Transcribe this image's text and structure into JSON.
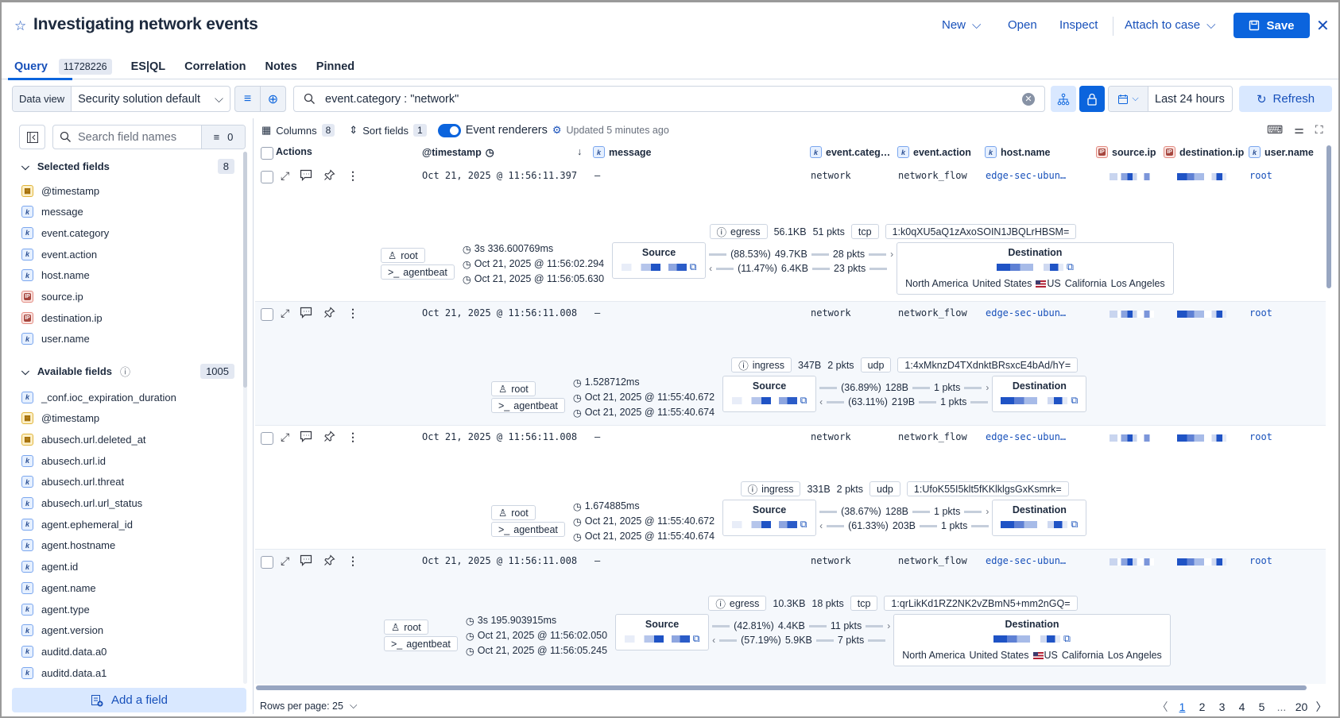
{
  "header": {
    "title": "Investigating network events",
    "actions": {
      "new": "New",
      "open": "Open",
      "inspect": "Inspect",
      "attach": "Attach to case",
      "save": "Save"
    }
  },
  "tabs": [
    {
      "label": "Query",
      "count": "11728226",
      "active": true
    },
    {
      "label": "ES|QL"
    },
    {
      "label": "Correlation"
    },
    {
      "label": "Notes"
    },
    {
      "label": "Pinned"
    }
  ],
  "query_bar": {
    "data_view_label": "Data view",
    "data_view_value": "Security solution default",
    "query": "event.category : \"network\"",
    "date_range": "Last 24 hours",
    "refresh": "Refresh"
  },
  "sidebar": {
    "search_placeholder": "Search field names",
    "filter_count": "0",
    "selected_label": "Selected fields",
    "selected_count": "8",
    "selected": [
      {
        "name": "@timestamp",
        "type": "date"
      },
      {
        "name": "message",
        "type": "k"
      },
      {
        "name": "event.category",
        "type": "k"
      },
      {
        "name": "event.action",
        "type": "k"
      },
      {
        "name": "host.name",
        "type": "k"
      },
      {
        "name": "source.ip",
        "type": "ip"
      },
      {
        "name": "destination.ip",
        "type": "ip"
      },
      {
        "name": "user.name",
        "type": "k"
      }
    ],
    "available_label": "Available fields",
    "available_count": "1005",
    "available": [
      {
        "name": "_conf.ioc_expiration_duration",
        "type": "k"
      },
      {
        "name": "@timestamp",
        "type": "date"
      },
      {
        "name": "abusech.url.deleted_at",
        "type": "date"
      },
      {
        "name": "abusech.url.id",
        "type": "k"
      },
      {
        "name": "abusech.url.threat",
        "type": "k"
      },
      {
        "name": "abusech.url.url_status",
        "type": "k"
      },
      {
        "name": "agent.ephemeral_id",
        "type": "k"
      },
      {
        "name": "agent.hostname",
        "type": "k"
      },
      {
        "name": "agent.id",
        "type": "k"
      },
      {
        "name": "agent.name",
        "type": "k"
      },
      {
        "name": "agent.type",
        "type": "k"
      },
      {
        "name": "agent.version",
        "type": "k"
      },
      {
        "name": "auditd.data.a0",
        "type": "k"
      },
      {
        "name": "auditd.data.a1",
        "type": "k"
      }
    ],
    "add_field": "Add a field"
  },
  "grid_toolbar": {
    "columns_label": "Columns",
    "columns_count": "8",
    "sort_label": "Sort fields",
    "sort_count": "1",
    "renderers_label": "Event renderers",
    "renderers_on": true,
    "updated": "Updated 5 minutes ago"
  },
  "table": {
    "headers": {
      "actions": "Actions",
      "timestamp": "@timestamp",
      "message": "message",
      "category": "event.categ…",
      "action": "event.action",
      "host": "host.name",
      "source_ip": "source.ip",
      "destination_ip": "destination.ip",
      "user": "user.name"
    },
    "rows": [
      {
        "timestamp": "Oct 21, 2025 @ 11:56:11.397",
        "message": "–",
        "category": "network",
        "action": "network_flow",
        "host": "edge-sec-ubun…",
        "user": "root",
        "detail": {
          "user": "root",
          "process": "agentbeat",
          "duration": "3s 336.600769ms",
          "start": "Oct 21, 2025 @ 11:56:02.294",
          "end": "Oct 21, 2025 @ 11:56:05.630",
          "direction": "egress",
          "bytes": "56.1KB",
          "packets": "51 pkts",
          "transport": "tcp",
          "community_id": "1:k0qXU5aQ1zAxoSOIN1JBQLrHBSM=",
          "source_label": "Source",
          "destination_label": "Destination",
          "out": {
            "pct": "(88.53%)",
            "bytes": "49.7KB",
            "pkts": "28 pkts"
          },
          "in": {
            "pct": "(11.47%)",
            "bytes": "6.4KB",
            "pkts": "23 pkts"
          },
          "geo": {
            "continent": "North America",
            "country": "United States",
            "iso": "US",
            "region": "California",
            "city": "Los Angeles"
          }
        }
      },
      {
        "timestamp": "Oct 21, 2025 @ 11:56:11.008",
        "message": "–",
        "category": "network",
        "action": "network_flow",
        "host": "edge-sec-ubun…",
        "user": "root",
        "detail": {
          "user": "root",
          "process": "agentbeat",
          "duration": "1.528712ms",
          "start": "Oct 21, 2025 @ 11:55:40.672",
          "end": "Oct 21, 2025 @ 11:55:40.674",
          "direction": "ingress",
          "bytes": "347B",
          "packets": "2 pkts",
          "transport": "udp",
          "community_id": "1:4xMknzD4TXdnktBRsxcE4bAd/hY=",
          "source_label": "Source",
          "destination_label": "Destination",
          "out": {
            "pct": "(36.89%)",
            "bytes": "128B",
            "pkts": "1 pkts"
          },
          "in": {
            "pct": "(63.11%)",
            "bytes": "219B",
            "pkts": "1 pkts"
          },
          "geo": null
        }
      },
      {
        "timestamp": "Oct 21, 2025 @ 11:56:11.008",
        "message": "–",
        "category": "network",
        "action": "network_flow",
        "host": "edge-sec-ubun…",
        "user": "root",
        "detail": {
          "user": "root",
          "process": "agentbeat",
          "duration": "1.674885ms",
          "start": "Oct 21, 2025 @ 11:55:40.672",
          "end": "Oct 21, 2025 @ 11:55:40.674",
          "direction": "ingress",
          "bytes": "331B",
          "packets": "2 pkts",
          "transport": "udp",
          "community_id": "1:UfoK55I5klt5fKKlklgsGxKsmrk=",
          "source_label": "Source",
          "destination_label": "Destination",
          "out": {
            "pct": "(38.67%)",
            "bytes": "128B",
            "pkts": "1 pkts"
          },
          "in": {
            "pct": "(61.33%)",
            "bytes": "203B",
            "pkts": "1 pkts"
          },
          "geo": null
        }
      },
      {
        "timestamp": "Oct 21, 2025 @ 11:56:11.008",
        "message": "–",
        "category": "network",
        "action": "network_flow",
        "host": "edge-sec-ubun…",
        "user": "root",
        "detail": {
          "user": "root",
          "process": "agentbeat",
          "duration": "3s 195.903915ms",
          "start": "Oct 21, 2025 @ 11:56:02.050",
          "end": "Oct 21, 2025 @ 11:56:05.245",
          "direction": "egress",
          "bytes": "10.3KB",
          "packets": "18 pkts",
          "transport": "tcp",
          "community_id": "1:qrLikKd1RZ2NK2vZBmN5+mm2nGQ=",
          "source_label": "Source",
          "destination_label": "Destination",
          "out": {
            "pct": "(42.81%)",
            "bytes": "4.4KB",
            "pkts": "11 pkts"
          },
          "in": {
            "pct": "(57.19%)",
            "bytes": "5.9KB",
            "pkts": "7 pkts"
          },
          "geo": {
            "continent": "North America",
            "country": "United States",
            "iso": "US",
            "region": "California",
            "city": "Los Angeles"
          }
        }
      }
    ]
  },
  "footer": {
    "rows_per_page": "Rows per page: 25",
    "pages": [
      "1",
      "2",
      "3",
      "4",
      "5",
      "...",
      "20"
    ],
    "current_page": "1"
  },
  "colors": {
    "primary": "#0b64dd",
    "link": "#1750ba",
    "text": "#1d2a3e",
    "border": "#d3dae6"
  }
}
